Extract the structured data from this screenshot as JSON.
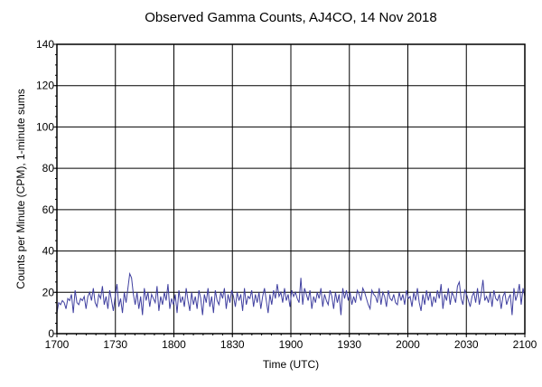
{
  "chart_data": {
    "type": "line",
    "title": "Observed Gamma Counts, AJ4CO, 14 Nov 2018",
    "xlabel": "Time (UTC)",
    "ylabel": "Counts per Minute (CPM), 1-minute sums",
    "xlim": [
      0,
      240
    ],
    "ylim": [
      0,
      140
    ],
    "x_ticks": [
      {
        "value": 0,
        "label": "1700"
      },
      {
        "value": 30,
        "label": "1730"
      },
      {
        "value": 60,
        "label": "1800"
      },
      {
        "value": 90,
        "label": "1830"
      },
      {
        "value": 120,
        "label": "1900"
      },
      {
        "value": 150,
        "label": "1930"
      },
      {
        "value": 180,
        "label": "2000"
      },
      {
        "value": 210,
        "label": "2030"
      },
      {
        "value": 240,
        "label": "2100"
      }
    ],
    "y_ticks": [
      0,
      20,
      40,
      60,
      80,
      100,
      120,
      140
    ],
    "grid": true,
    "series_color": "#4040a0",
    "series": [
      {
        "name": "",
        "values": [
          10,
          15,
          14,
          16,
          15,
          12,
          17,
          16,
          19,
          10,
          21,
          15,
          14,
          17,
          16,
          18,
          12,
          18,
          20,
          16,
          22,
          15,
          13,
          19,
          17,
          23,
          14,
          18,
          12,
          21,
          16,
          11,
          18,
          24,
          13,
          17,
          10,
          20,
          15,
          22,
          29,
          27,
          19,
          14,
          20,
          12,
          18,
          9,
          22,
          16,
          20,
          13,
          19,
          17,
          15,
          23,
          11,
          18,
          14,
          20,
          16,
          24,
          12,
          17,
          14,
          19,
          10,
          21,
          15,
          18,
          13,
          22,
          16,
          11,
          20,
          14,
          18,
          12,
          21,
          17,
          9,
          19,
          15,
          22,
          13,
          18,
          10,
          21,
          16,
          14,
          20,
          17,
          22,
          12,
          19,
          15,
          21,
          18,
          13,
          20,
          16,
          19,
          11,
          22,
          14,
          18,
          17,
          21,
          13,
          19,
          15,
          20,
          12,
          18,
          22,
          16,
          10,
          19,
          14,
          21,
          17,
          24,
          18,
          20,
          15,
          22,
          16,
          19,
          13,
          21,
          18,
          20,
          17,
          15,
          27,
          14,
          22,
          19,
          16,
          21,
          12,
          18,
          15,
          20,
          17,
          22,
          13,
          19,
          16,
          14,
          21,
          18,
          12,
          20,
          15,
          19,
          9,
          22,
          17,
          21,
          16,
          20,
          14,
          18,
          15,
          21,
          19,
          16,
          22,
          20,
          17,
          14,
          12,
          21,
          19,
          18,
          15,
          22,
          14,
          20,
          18,
          13,
          21,
          17,
          16,
          19,
          15,
          14,
          20,
          16,
          19,
          14,
          21,
          17,
          18,
          13,
          20,
          16,
          22,
          15,
          11,
          19,
          14,
          21,
          16,
          20,
          13,
          18,
          15,
          21,
          17,
          24,
          12,
          19,
          16,
          22,
          14,
          20,
          18,
          15,
          23,
          25,
          17,
          14,
          21,
          19,
          16,
          13,
          18,
          20,
          15,
          22,
          14,
          19,
          26,
          16,
          18,
          15,
          20,
          13,
          21,
          17,
          16,
          19,
          12,
          18,
          20,
          14,
          17,
          19,
          9,
          22,
          16,
          19,
          24,
          14,
          22,
          18
        ]
      }
    ]
  }
}
